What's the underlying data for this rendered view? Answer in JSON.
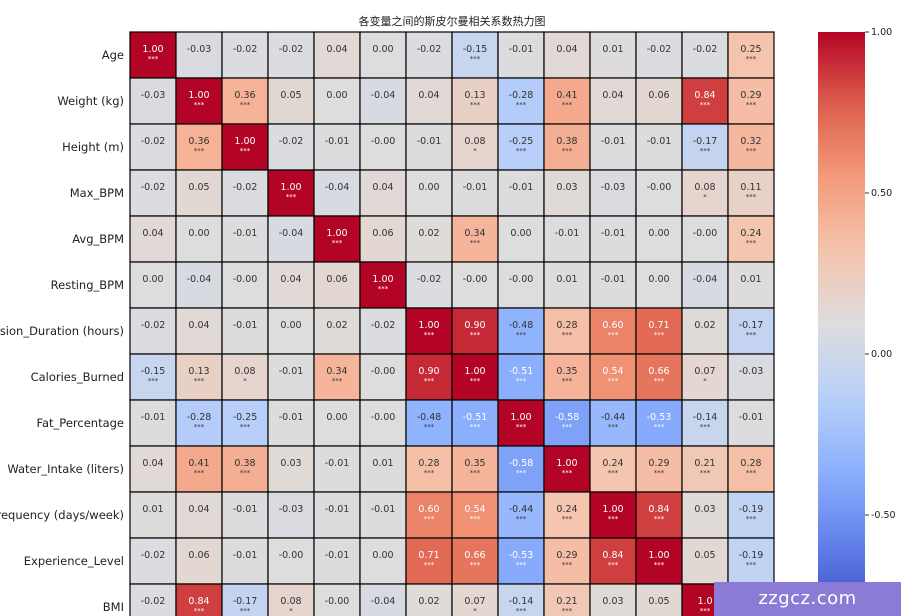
{
  "chart_data": {
    "type": "heatmap",
    "title": "各变量之间的斯皮尔曼相关系数热力图",
    "row_labels": [
      "Age",
      "Weight (kg)",
      "Height (m)",
      "Max_BPM",
      "Avg_BPM",
      "Resting_BPM",
      "Session_Duration (hours)",
      "Calories_Burned",
      "Fat_Percentage",
      "Water_Intake (liters)",
      "Workout_Frequency (days/week)",
      "Experience_Level",
      "BMI"
    ],
    "values": [
      [
        1.0,
        -0.03,
        -0.02,
        -0.02,
        0.04,
        0.0,
        -0.02,
        -0.15,
        -0.01,
        0.04,
        0.01,
        -0.02,
        -0.02,
        0.25
      ],
      [
        -0.03,
        1.0,
        0.36,
        0.05,
        0.0,
        -0.04,
        0.04,
        0.13,
        -0.28,
        0.41,
        0.04,
        0.06,
        0.84,
        0.29
      ],
      [
        -0.02,
        0.36,
        1.0,
        -0.02,
        -0.01,
        -0.0,
        -0.01,
        0.08,
        -0.25,
        0.38,
        -0.01,
        -0.01,
        -0.17,
        0.32
      ],
      [
        -0.02,
        0.05,
        -0.02,
        1.0,
        -0.04,
        0.04,
        0.0,
        -0.01,
        -0.01,
        0.03,
        -0.03,
        -0.0,
        0.08,
        0.11
      ],
      [
        0.04,
        0.0,
        -0.01,
        -0.04,
        1.0,
        0.06,
        0.02,
        0.34,
        0.0,
        -0.01,
        -0.01,
        0.0,
        -0.0,
        0.24
      ],
      [
        0.0,
        -0.04,
        -0.0,
        0.04,
        0.06,
        1.0,
        -0.02,
        -0.0,
        -0.0,
        0.01,
        -0.01,
        0.0,
        -0.04,
        0.01
      ],
      [
        -0.02,
        0.04,
        -0.01,
        0.0,
        0.02,
        -0.02,
        1.0,
        0.9,
        -0.48,
        0.28,
        0.6,
        0.71,
        0.02,
        -0.17
      ],
      [
        -0.15,
        0.13,
        0.08,
        -0.01,
        0.34,
        -0.0,
        0.9,
        1.0,
        -0.51,
        0.35,
        0.54,
        0.66,
        0.07,
        -0.03
      ],
      [
        -0.01,
        -0.28,
        -0.25,
        -0.01,
        0.0,
        -0.0,
        -0.48,
        -0.51,
        1.0,
        -0.58,
        -0.44,
        -0.53,
        -0.14,
        -0.01
      ],
      [
        0.04,
        0.41,
        0.38,
        0.03,
        -0.01,
        0.01,
        0.28,
        0.35,
        -0.58,
        1.0,
        0.24,
        0.29,
        0.21,
        0.28
      ],
      [
        0.01,
        0.04,
        -0.01,
        -0.03,
        -0.01,
        -0.01,
        0.6,
        0.54,
        -0.44,
        0.24,
        1.0,
        0.84,
        0.03,
        -0.19
      ],
      [
        -0.02,
        0.06,
        -0.01,
        -0.0,
        -0.01,
        0.0,
        0.71,
        0.66,
        -0.53,
        0.29,
        0.84,
        1.0,
        0.05,
        -0.19
      ],
      [
        -0.02,
        0.84,
        -0.17,
        0.08,
        -0.0,
        -0.04,
        0.02,
        0.07,
        -0.14,
        0.21,
        0.03,
        0.05,
        1.0,
        null
      ]
    ],
    "labels": [
      [
        "1.00",
        "-0.03",
        "-0.02",
        "-0.02",
        "0.04",
        "0.00",
        "-0.02",
        "-0.15",
        "-0.01",
        "0.04",
        "0.01",
        "-0.02",
        "-0.02",
        "0.25"
      ],
      [
        "-0.03",
        "1.00",
        "0.36",
        "0.05",
        "0.00",
        "-0.04",
        "0.04",
        "0.13",
        "-0.28",
        "0.41",
        "0.04",
        "0.06",
        "0.84",
        "0.29"
      ],
      [
        "-0.02",
        "0.36",
        "1.00",
        "-0.02",
        "-0.01",
        "-0.00",
        "-0.01",
        "0.08",
        "-0.25",
        "0.38",
        "-0.01",
        "-0.01",
        "-0.17",
        "0.32"
      ],
      [
        "-0.02",
        "0.05",
        "-0.02",
        "1.00",
        "-0.04",
        "0.04",
        "0.00",
        "-0.01",
        "-0.01",
        "0.03",
        "-0.03",
        "-0.00",
        "0.08",
        "0.11"
      ],
      [
        "0.04",
        "0.00",
        "-0.01",
        "-0.04",
        "1.00",
        "0.06",
        "0.02",
        "0.34",
        "0.00",
        "-0.01",
        "-0.01",
        "0.00",
        "-0.00",
        "0.24"
      ],
      [
        "0.00",
        "-0.04",
        "-0.00",
        "0.04",
        "0.06",
        "1.00",
        "-0.02",
        "-0.00",
        "-0.00",
        "0.01",
        "-0.01",
        "0.00",
        "-0.04",
        "0.01"
      ],
      [
        "-0.02",
        "0.04",
        "-0.01",
        "0.00",
        "0.02",
        "-0.02",
        "1.00",
        "0.90",
        "-0.48",
        "0.28",
        "0.60",
        "0.71",
        "0.02",
        "-0.17"
      ],
      [
        "-0.15",
        "0.13",
        "0.08",
        "-0.01",
        "0.34",
        "-0.00",
        "0.90",
        "1.00",
        "-0.51",
        "0.35",
        "0.54",
        "0.66",
        "0.07",
        "-0.03"
      ],
      [
        "-0.01",
        "-0.28",
        "-0.25",
        "-0.01",
        "0.00",
        "-0.00",
        "-0.48",
        "-0.51",
        "1.00",
        "-0.58",
        "-0.44",
        "-0.53",
        "-0.14",
        "-0.01"
      ],
      [
        "0.04",
        "0.41",
        "0.38",
        "0.03",
        "-0.01",
        "0.01",
        "0.28",
        "0.35",
        "-0.58",
        "1.00",
        "0.24",
        "0.29",
        "0.21",
        "0.28"
      ],
      [
        "0.01",
        "0.04",
        "-0.01",
        "-0.03",
        "-0.01",
        "-0.01",
        "0.60",
        "0.54",
        "-0.44",
        "0.24",
        "1.00",
        "0.84",
        "0.03",
        "-0.19"
      ],
      [
        "-0.02",
        "0.06",
        "-0.01",
        "-0.00",
        "-0.01",
        "0.00",
        "0.71",
        "0.66",
        "-0.53",
        "0.29",
        "0.84",
        "1.00",
        "0.05",
        "-0.19"
      ],
      [
        "-0.02",
        "0.84",
        "-0.17",
        "0.08",
        "-0.00",
        "-0.04",
        "0.02",
        "0.07",
        "-0.14",
        "0.21",
        "0.03",
        "0.05",
        "1.0",
        ""
      ]
    ],
    "stars": [
      [
        "***",
        "",
        "",
        "",
        "",
        "",
        "",
        "***",
        "",
        "",
        "",
        "",
        "",
        "***"
      ],
      [
        "",
        "***",
        "***",
        "",
        "",
        "",
        "",
        "***",
        "***",
        "***",
        "",
        "",
        "***",
        "***"
      ],
      [
        "",
        "***",
        "***",
        "",
        "",
        "",
        "",
        "*",
        "***",
        "***",
        "",
        "",
        "***",
        "***"
      ],
      [
        "",
        "",
        "",
        "***",
        "",
        "",
        "",
        "",
        "",
        "",
        "",
        "",
        "*",
        "***"
      ],
      [
        "",
        "",
        "",
        "",
        "***",
        "",
        "",
        "***",
        "",
        "",
        "",
        "",
        "",
        "***"
      ],
      [
        "",
        "",
        "",
        "",
        "",
        "***",
        "",
        "",
        "",
        "",
        "",
        "",
        "",
        ""
      ],
      [
        "",
        "",
        "",
        "",
        "",
        "",
        "***",
        "***",
        "***",
        "***",
        "***",
        "***",
        "",
        "***"
      ],
      [
        "***",
        "***",
        "*",
        "",
        "***",
        "",
        "***",
        "***",
        "***",
        "***",
        "***",
        "***",
        "*",
        ""
      ],
      [
        "",
        "***",
        "***",
        "",
        "",
        "",
        "***",
        "***",
        "***",
        "***",
        "***",
        "***",
        "***",
        ""
      ],
      [
        "",
        "***",
        "***",
        "",
        "",
        "",
        "***",
        "***",
        "***",
        "***",
        "***",
        "***",
        "***",
        "***"
      ],
      [
        "",
        "",
        "",
        "",
        "",
        "",
        "***",
        "***",
        "***",
        "***",
        "***",
        "***",
        "",
        "***"
      ],
      [
        "",
        "",
        "",
        "",
        "",
        "",
        "***",
        "***",
        "***",
        "***",
        "***",
        "***",
        "",
        "***"
      ],
      [
        "",
        "***",
        "***",
        "*",
        "",
        "",
        "",
        "*",
        "***",
        "***",
        "",
        "",
        "***",
        ""
      ]
    ],
    "colorbar": {
      "min": -1.0,
      "max": 1.0,
      "ticks": [
        "1.00",
        "0.50",
        "0.00",
        "-0.50"
      ]
    },
    "colormap": "coolwarm"
  },
  "watermark": "zzgcz.com"
}
